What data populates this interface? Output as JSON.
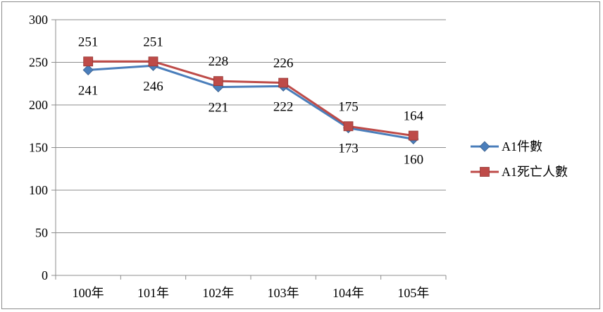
{
  "chart_data": {
    "type": "line",
    "categories": [
      "100年",
      "101年",
      "102年",
      "103年",
      "104年",
      "105年"
    ],
    "ylim": [
      0,
      300
    ],
    "yticks": [
      "0",
      "50",
      "100",
      "150",
      "200",
      "250",
      "300"
    ],
    "grid": true,
    "legend_position": "right",
    "series": [
      {
        "name": "A1件數",
        "values": [
          241,
          246,
          221,
          222,
          173,
          160
        ],
        "color": "#4a7ebb",
        "marker": "diamond"
      },
      {
        "name": "A1死亡人數",
        "values": [
          251,
          251,
          228,
          226,
          175,
          164
        ],
        "color": "#be4b48",
        "marker": "square"
      }
    ]
  }
}
